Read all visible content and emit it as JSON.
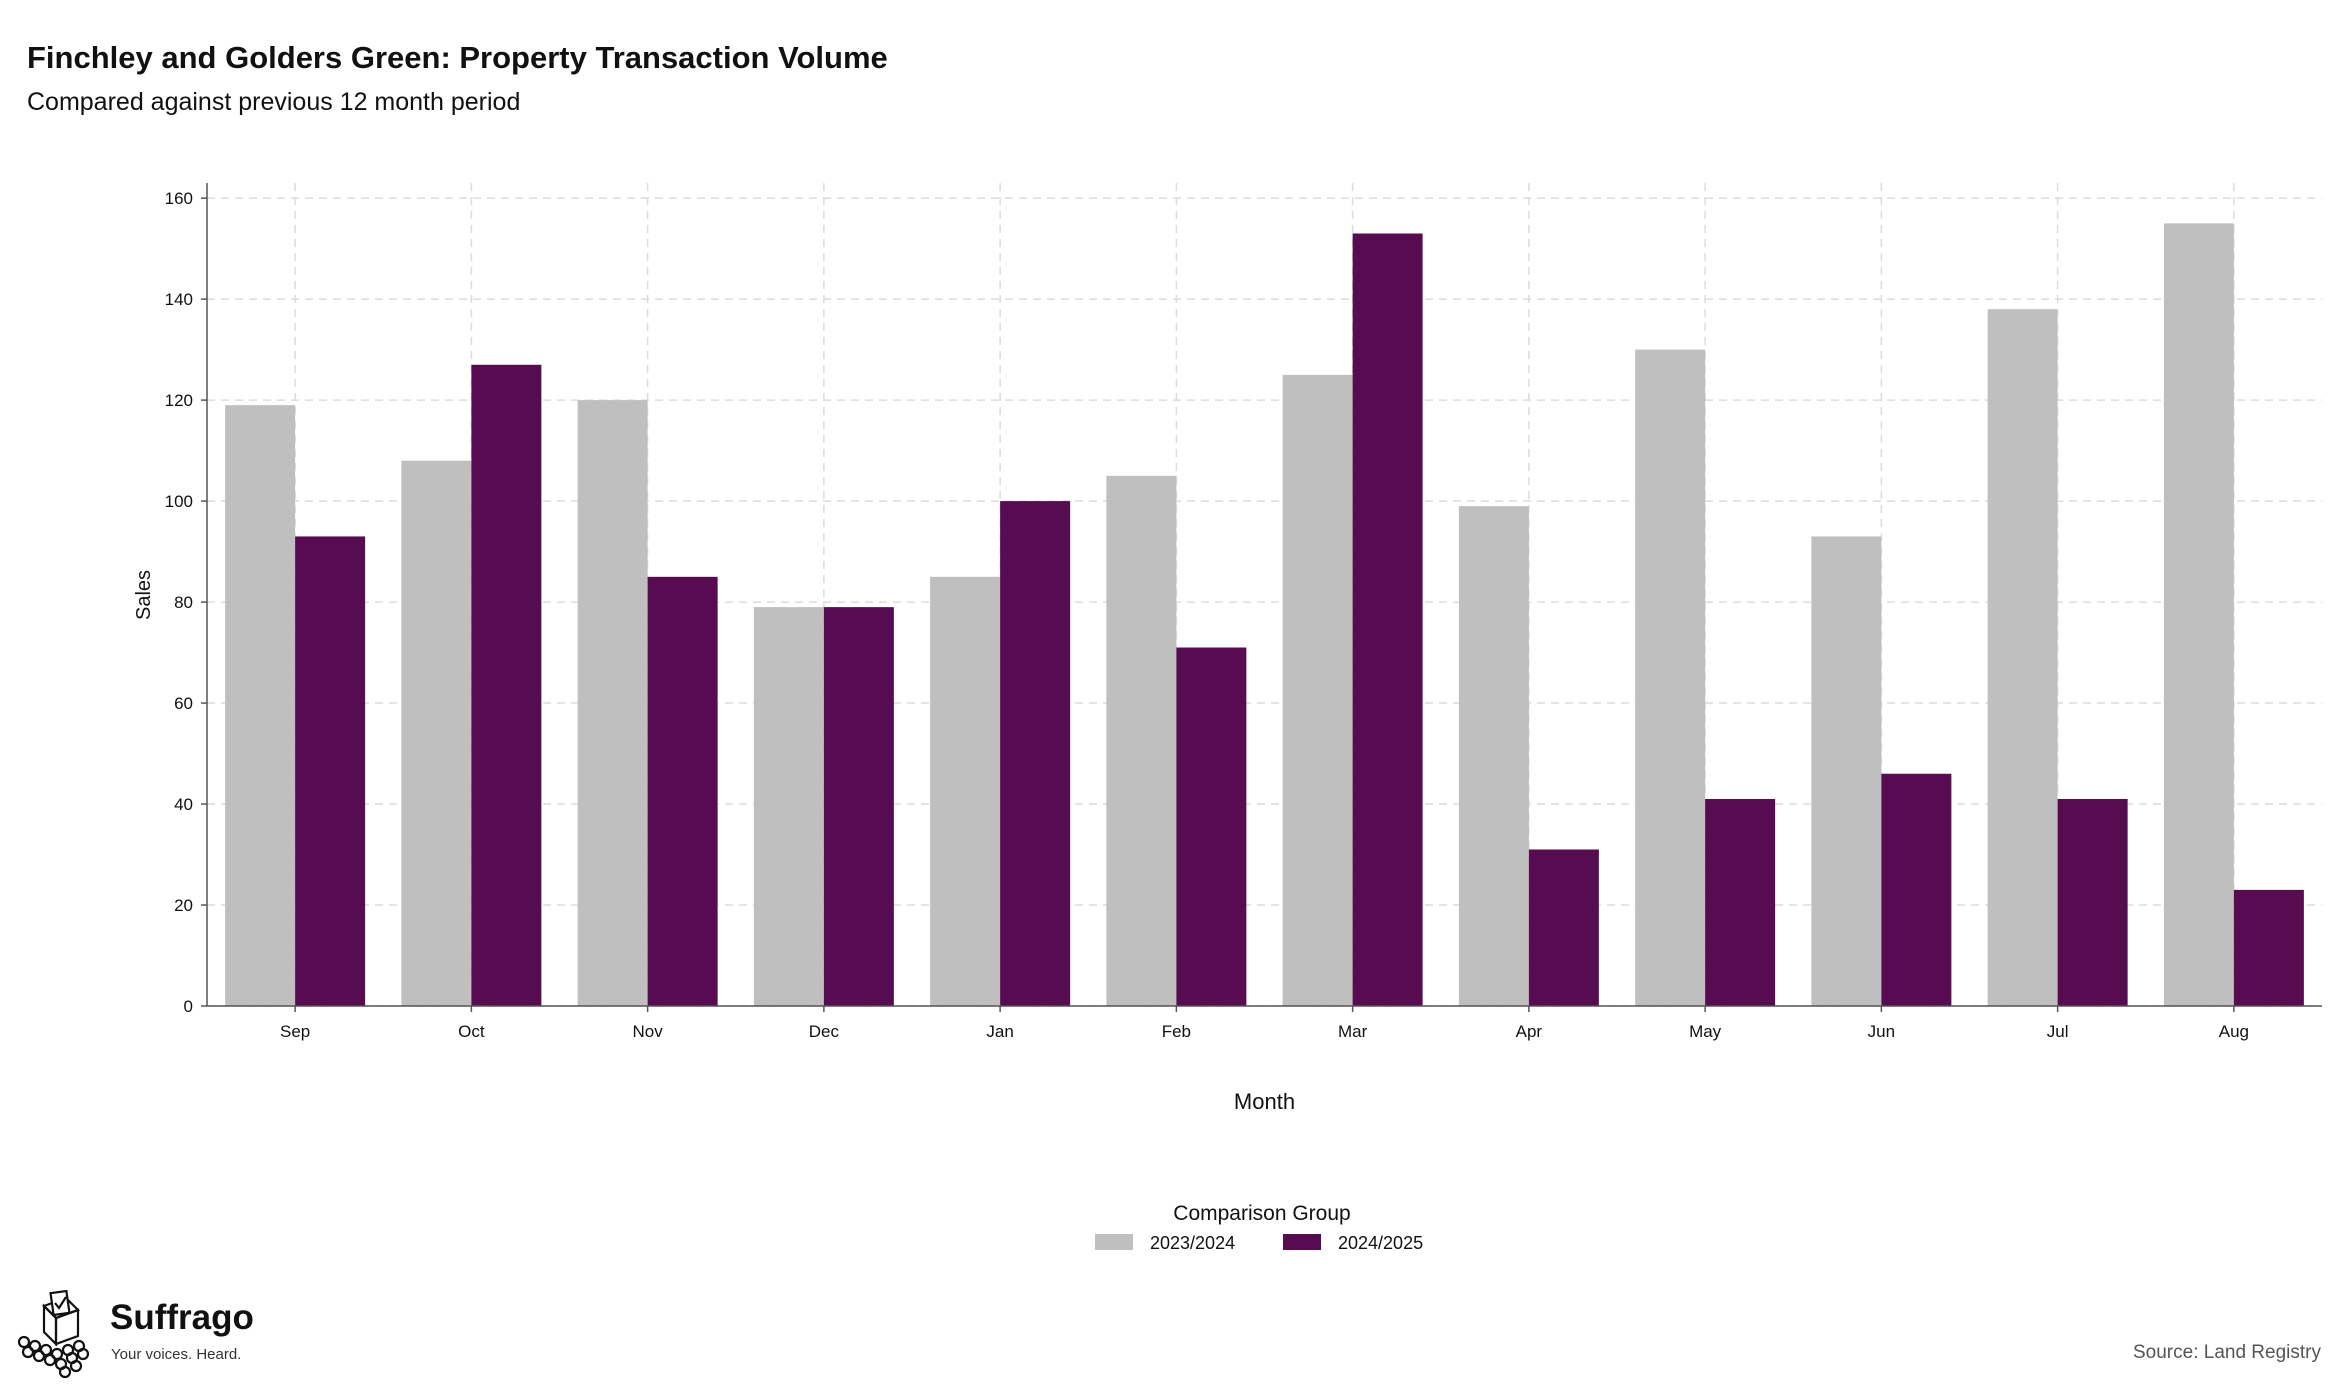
{
  "page": {
    "title": "Finchley and Golders Green: Property Transaction Volume",
    "subtitle": "Compared against previous 12 month period",
    "source": "Source: Land Registry"
  },
  "brand": {
    "name": "Suffrago",
    "tagline": "Your voices. Heard.",
    "icon": "ballot-box-icon"
  },
  "chart_data": {
    "type": "bar",
    "title": "Finchley and Golders Green: Property Transaction Volume",
    "subtitle": "Compared against previous 12 month period",
    "xlabel": "Month",
    "ylabel": "Sales",
    "categories": [
      "Sep",
      "Oct",
      "Nov",
      "Dec",
      "Jan",
      "Feb",
      "Mar",
      "Apr",
      "May",
      "Jun",
      "Jul",
      "Aug"
    ],
    "series": [
      {
        "name": "2023/2024",
        "color": "#bfbfbf",
        "values": [
          119,
          108,
          120,
          79,
          85,
          105,
          125,
          99,
          130,
          93,
          138,
          155
        ]
      },
      {
        "name": "2024/2025",
        "color": "#570c52",
        "values": [
          93,
          127,
          85,
          79,
          100,
          71,
          153,
          31,
          41,
          46,
          41,
          23
        ]
      }
    ],
    "ylim": [
      0,
      163
    ],
    "yticks": [
      0,
      20,
      40,
      60,
      80,
      100,
      120,
      140,
      160
    ],
    "grid": true,
    "legend": {
      "title": "Comparison Group",
      "placement": "bottom-center"
    }
  }
}
